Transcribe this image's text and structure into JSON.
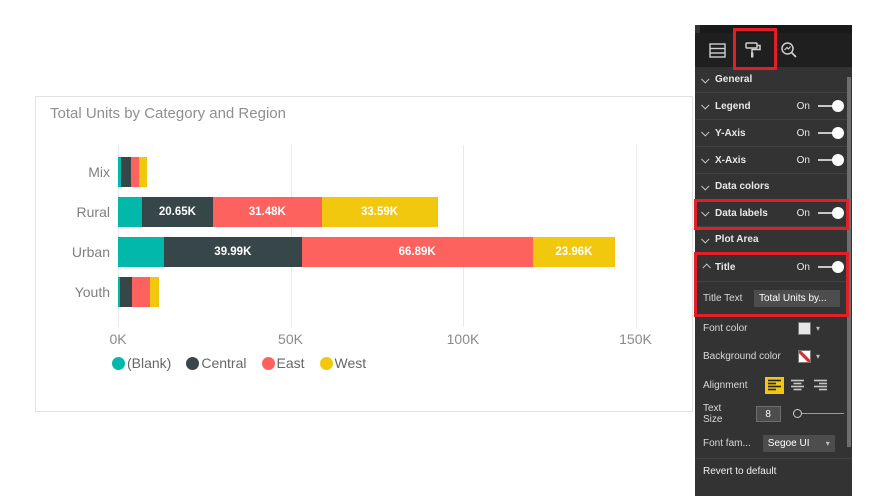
{
  "chart_data": {
    "type": "bar",
    "orientation": "horizontal-stacked",
    "title": "Total Units by Category and Region",
    "categories": [
      "Mix",
      "Rural",
      "Urban",
      "Youth"
    ],
    "series": [
      {
        "name": "(Blank)",
        "color": "#01B8AA",
        "values": [
          1.0,
          6.9,
          13.3,
          0.6
        ],
        "labels": [
          "",
          "",
          "",
          ""
        ]
      },
      {
        "name": "Central",
        "color": "#374649",
        "values": [
          2.9,
          20.65,
          39.99,
          3.5
        ],
        "labels": [
          "",
          "20.65K",
          "39.99K",
          ""
        ]
      },
      {
        "name": "East",
        "color": "#FD625E",
        "values": [
          2.2,
          31.48,
          66.89,
          5.3
        ],
        "labels": [
          "",
          "31.48K",
          "66.89K",
          ""
        ]
      },
      {
        "name": "West",
        "color": "#F2C80F",
        "values": [
          2.4,
          33.59,
          23.96,
          2.4
        ],
        "labels": [
          "",
          "33.59K",
          "23.96K",
          ""
        ]
      }
    ],
    "x_ticks": [
      {
        "label": "0K",
        "value": 0
      },
      {
        "label": "50K",
        "value": 50
      },
      {
        "label": "100K",
        "value": 100
      },
      {
        "label": "150K",
        "value": 150
      }
    ],
    "xlim": [
      0,
      150
    ],
    "grid": true,
    "legend_position": "bottom",
    "data_label_color": "#ffffff"
  },
  "pane": {
    "tabs": [
      {
        "name": "fields"
      },
      {
        "name": "format",
        "selected": true
      },
      {
        "name": "analytics"
      }
    ],
    "rows": [
      {
        "label": "General"
      },
      {
        "label": "Legend",
        "state": "On"
      },
      {
        "label": "Y-Axis",
        "state": "On"
      },
      {
        "label": "X-Axis",
        "state": "On"
      },
      {
        "label": "Data colors"
      },
      {
        "label": "Data labels",
        "state": "On"
      },
      {
        "label": "Plot Area"
      },
      {
        "label": "Title",
        "state": "On"
      }
    ],
    "title_settings": {
      "title_text_label": "Title Text",
      "title_text_value": "Total Units by...",
      "font_color_label": "Font color",
      "background_color_label": "Background color",
      "alignment_label": "Alignment",
      "text_size_label": "Text Size",
      "text_size_value": "8",
      "font_family_label": "Font fam...",
      "font_family_value": "Segoe UI",
      "revert_label": "Revert to default"
    },
    "annotation_color": "#e41e26"
  }
}
